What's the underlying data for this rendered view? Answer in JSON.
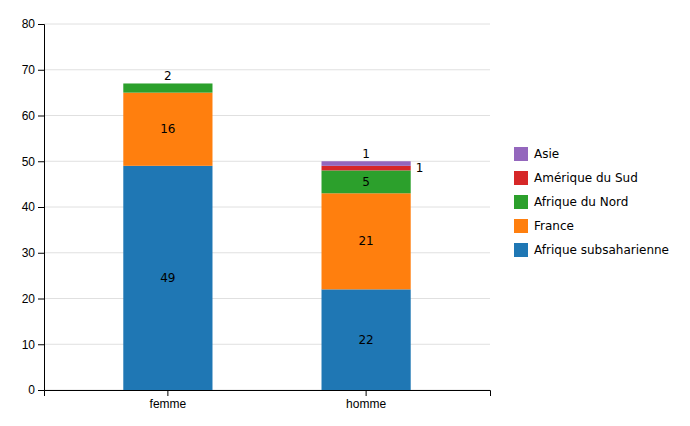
{
  "chart_data": {
    "type": "bar",
    "stacked": true,
    "categories": [
      "femme",
      "homme"
    ],
    "series": [
      {
        "name": "Afrique subsaharienne",
        "values": [
          49,
          22
        ]
      },
      {
        "name": "France",
        "values": [
          16,
          21
        ]
      },
      {
        "name": "Afrique du Nord",
        "values": [
          2,
          5
        ]
      },
      {
        "name": "Amérique du Sud",
        "values": [
          0,
          1
        ]
      },
      {
        "name": "Asie",
        "values": [
          0,
          1
        ]
      }
    ],
    "ylim": [
      0,
      80
    ],
    "yticks": [
      0,
      10,
      20,
      30,
      40,
      50,
      60,
      70,
      80
    ],
    "grid": true,
    "legend": "right",
    "data_labels": true
  }
}
